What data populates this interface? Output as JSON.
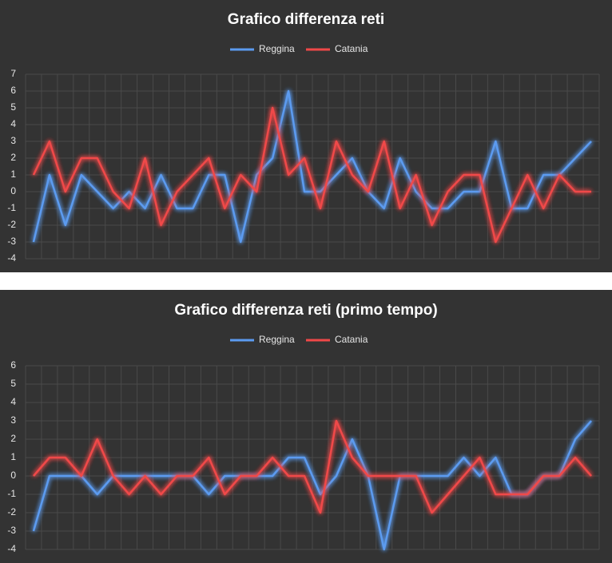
{
  "chart_data": [
    {
      "type": "line",
      "title": "Grafico differenza reti",
      "categories": [
        null,
        null,
        null,
        null,
        null,
        null,
        null,
        null,
        null,
        null,
        null,
        null,
        null,
        null,
        null,
        null,
        null,
        null,
        null,
        null,
        null,
        null,
        null,
        null,
        null,
        null,
        null,
        null,
        null,
        null,
        null,
        null,
        null,
        null,
        null,
        null
      ],
      "series": [
        {
          "name": "Reggina",
          "color": "#5b9bf0",
          "values": [
            -3,
            1,
            -2,
            1,
            0,
            -1,
            0,
            -1,
            1,
            -1,
            -1,
            1,
            1,
            -3,
            1,
            2,
            6,
            0,
            0,
            1,
            2,
            0,
            -1,
            2,
            0,
            -1,
            -1,
            0,
            0,
            3,
            -1,
            -1,
            1,
            1,
            2,
            3
          ]
        },
        {
          "name": "Catania",
          "color": "#f04848",
          "values": [
            1,
            3,
            0,
            2,
            2,
            0,
            -1,
            2,
            -2,
            0,
            1,
            2,
            -1,
            1,
            0,
            5,
            1,
            2,
            -1,
            3,
            1,
            0,
            3,
            -1,
            1,
            -2,
            0,
            1,
            1,
            -3,
            -1,
            1,
            -1,
            1,
            0,
            0
          ]
        }
      ],
      "ylim": [
        -4,
        7
      ],
      "yticks": [
        -4,
        -3,
        -2,
        -1,
        0,
        1,
        2,
        3,
        4,
        5,
        6,
        7
      ],
      "grid": true,
      "legend": "top"
    },
    {
      "type": "line",
      "title": "Grafico differenza reti (primo tempo)",
      "categories": [
        null,
        null,
        null,
        null,
        null,
        null,
        null,
        null,
        null,
        null,
        null,
        null,
        null,
        null,
        null,
        null,
        null,
        null,
        null,
        null,
        null,
        null,
        null,
        null,
        null,
        null,
        null,
        null,
        null,
        null,
        null,
        null,
        null,
        null,
        null,
        null
      ],
      "series": [
        {
          "name": "Reggina",
          "color": "#5b9bf0",
          "values": [
            -3,
            0,
            0,
            0,
            -1,
            0,
            0,
            0,
            0,
            0,
            0,
            -1,
            0,
            0,
            0,
            0,
            1,
            1,
            -1,
            0,
            2,
            0,
            -4,
            0,
            0,
            0,
            0,
            1,
            0,
            1,
            -1,
            -1,
            0,
            0,
            2,
            3
          ]
        },
        {
          "name": "Catania",
          "color": "#f04848",
          "values": [
            0,
            1,
            1,
            0,
            2,
            0,
            -1,
            0,
            -1,
            0,
            0,
            1,
            -1,
            0,
            0,
            1,
            0,
            0,
            -2,
            3,
            1,
            0,
            0,
            0,
            0,
            -2,
            -1,
            0,
            1,
            -1,
            -1,
            -1,
            0,
            0,
            1,
            0
          ]
        }
      ],
      "ylim": [
        -4,
        6
      ],
      "yticks": [
        -4,
        -3,
        -2,
        -1,
        0,
        1,
        2,
        3,
        4,
        5,
        6
      ],
      "grid": true,
      "legend": "top"
    }
  ]
}
